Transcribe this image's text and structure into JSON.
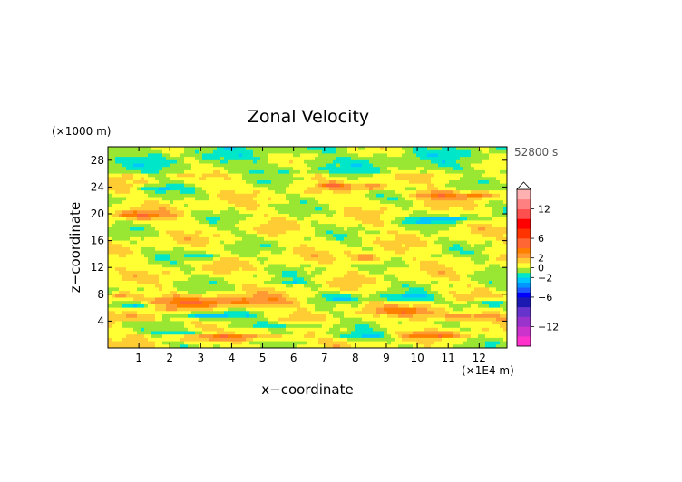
{
  "chart_data": {
    "type": "heatmap",
    "title": "Zonal Velocity",
    "xlabel": "x−coordinate",
    "ylabel": "z−coordinate",
    "x_unit": "(×1E4 m)",
    "y_unit": "(×1000 m)",
    "time_label": "52800 s",
    "xlim": [
      0,
      12.9
    ],
    "ylim": [
      0,
      30
    ],
    "x_ticks": [
      1,
      2,
      3,
      4,
      5,
      6,
      7,
      8,
      9,
      10,
      11,
      12
    ],
    "y_ticks": [
      4,
      8,
      12,
      16,
      20,
      24,
      28
    ],
    "colorbar": {
      "range": [
        -16,
        16
      ],
      "tick_values": [
        12,
        6,
        2,
        0,
        -2,
        -6,
        -12
      ],
      "tick_labels": [
        "12",
        "6",
        "2",
        "0",
        "−2",
        "−6",
        "−12"
      ],
      "bands": [
        {
          "from": -16,
          "to": -14,
          "color": "#ff33cc"
        },
        {
          "from": -14,
          "to": -12,
          "color": "#cc33cc"
        },
        {
          "from": -12,
          "to": -10,
          "color": "#9933cc"
        },
        {
          "from": -10,
          "to": -8,
          "color": "#6633cc"
        },
        {
          "from": -8,
          "to": -6,
          "color": "#1a1ab3"
        },
        {
          "from": -6,
          "to": -5,
          "color": "#0000ff"
        },
        {
          "from": -5,
          "to": -4,
          "color": "#1e5aff"
        },
        {
          "from": -4,
          "to": -3,
          "color": "#0096ff"
        },
        {
          "from": -3,
          "to": -2,
          "color": "#00c8ff"
        },
        {
          "from": -2,
          "to": -1,
          "color": "#00e6c8"
        },
        {
          "from": -1,
          "to": 0,
          "color": "#99e633"
        },
        {
          "from": 0,
          "to": 1,
          "color": "#ffff33"
        },
        {
          "from": 1,
          "to": 2,
          "color": "#ffcc33"
        },
        {
          "from": 2,
          "to": 3,
          "color": "#ff9933"
        },
        {
          "from": 3,
          "to": 4,
          "color": "#ff8000"
        },
        {
          "from": 4,
          "to": 6,
          "color": "#ff6633"
        },
        {
          "from": 6,
          "to": 8,
          "color": "#ff3300"
        },
        {
          "from": 8,
          "to": 10,
          "color": "#ff0000"
        },
        {
          "from": 10,
          "to": 12,
          "color": "#ff5050"
        },
        {
          "from": 12,
          "to": 14,
          "color": "#ff8080"
        },
        {
          "from": 14,
          "to": 16,
          "color": "#ffb0b0"
        }
      ]
    },
    "features": [
      {
        "x": 3.5,
        "z": 6.8,
        "rx": 2.6,
        "rz": 0.9,
        "v": 3.2
      },
      {
        "x": 1.2,
        "z": 4.6,
        "rx": 1.0,
        "rz": 0.6,
        "v": 3.0
      },
      {
        "x": 2.8,
        "z": 4.8,
        "rx": 1.6,
        "rz": 0.5,
        "v": -2.6
      },
      {
        "x": 5.6,
        "z": 3.4,
        "rx": 1.4,
        "rz": 0.4,
        "v": -2.4
      },
      {
        "x": 1.0,
        "z": 6.4,
        "rx": 0.8,
        "rz": 0.4,
        "v": -2.8
      },
      {
        "x": 0.4,
        "z": 7.8,
        "rx": 0.5,
        "rz": 0.5,
        "v": 3.0
      },
      {
        "x": 4.2,
        "z": 1.6,
        "rx": 1.8,
        "rz": 0.5,
        "v": 3.0
      },
      {
        "x": 2.6,
        "z": 2.2,
        "rx": 1.2,
        "rz": 0.4,
        "v": -2.2
      },
      {
        "x": 8.3,
        "z": 1.8,
        "rx": 0.8,
        "rz": 0.5,
        "v": -2.4
      },
      {
        "x": 10.6,
        "z": 1.9,
        "rx": 1.2,
        "rz": 0.4,
        "v": 3.0
      },
      {
        "x": 11.4,
        "z": 4.6,
        "rx": 1.2,
        "rz": 0.6,
        "v": 3.2
      },
      {
        "x": 12.2,
        "z": 6.6,
        "rx": 0.8,
        "rz": 0.5,
        "v": -2.6
      },
      {
        "x": 9.6,
        "z": 7.5,
        "rx": 1.0,
        "rz": 0.6,
        "v": -2.4
      },
      {
        "x": 9.8,
        "z": 5.5,
        "rx": 1.1,
        "rz": 0.6,
        "v": 3.0
      },
      {
        "x": 7.6,
        "z": 7.4,
        "rx": 0.7,
        "rz": 0.5,
        "v": -2.2
      },
      {
        "x": 8.4,
        "z": 13.4,
        "rx": 0.6,
        "rz": 0.7,
        "v": 3.2
      },
      {
        "x": 11.2,
        "z": 19.2,
        "rx": 0.7,
        "rz": 0.5,
        "v": -2.6
      },
      {
        "x": 10.0,
        "z": 19.0,
        "rx": 0.5,
        "rz": 0.4,
        "v": -2.2
      },
      {
        "x": 1.0,
        "z": 19.8,
        "rx": 1.0,
        "rz": 0.6,
        "v": 3.0
      },
      {
        "x": 1.6,
        "z": 23.8,
        "rx": 0.6,
        "rz": 0.5,
        "v": -2.2
      },
      {
        "x": 10.6,
        "z": 22.8,
        "rx": 0.9,
        "rz": 0.6,
        "v": 3.0
      },
      {
        "x": 12.0,
        "z": 22.8,
        "rx": 0.5,
        "rz": 0.5,
        "v": 3.0
      },
      {
        "x": 8.5,
        "z": 24.0,
        "rx": 0.5,
        "rz": 0.5,
        "v": 3.0
      },
      {
        "x": 7.3,
        "z": 24.2,
        "rx": 0.4,
        "rz": 0.4,
        "v": 3.0
      },
      {
        "x": 3.1,
        "z": 13.7,
        "rx": 0.6,
        "rz": 0.5,
        "v": -2.0
      },
      {
        "x": 5.9,
        "z": 9.7,
        "rx": 0.5,
        "rz": 0.4,
        "v": -2.0
      }
    ]
  }
}
